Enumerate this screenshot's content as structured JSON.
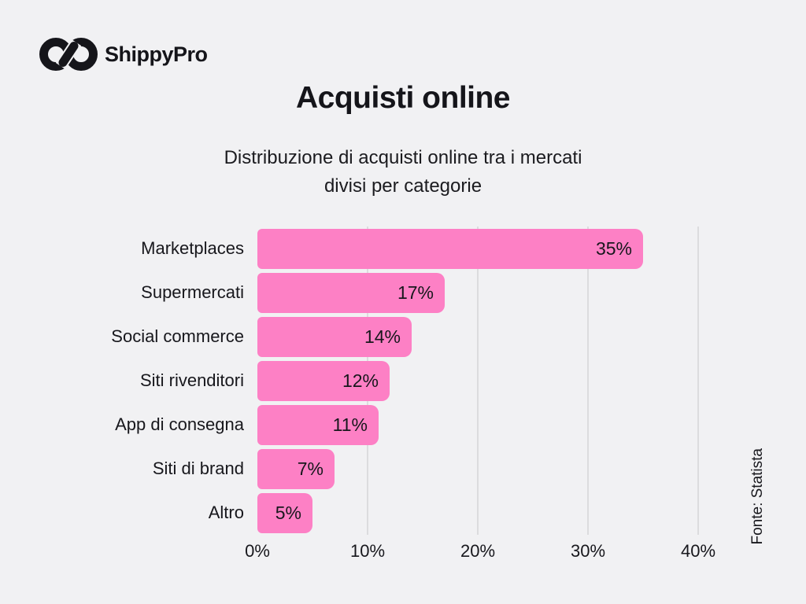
{
  "page": {
    "background_color": "#f1f1f3",
    "text_color": "#17171c"
  },
  "brand": {
    "name": "ShippyPro",
    "logo_icon": "infinity-chain-icon",
    "logo_color": "#15151a"
  },
  "header": {
    "title": "Acquisti online",
    "subtitle_line1": "Distribuzione di acquisti online tra i mercati",
    "subtitle_line2": "divisi per categorie"
  },
  "chart_data": {
    "type": "bar",
    "orientation": "horizontal",
    "title": "Acquisti online",
    "subtitle": "Distribuzione di acquisti online tra i mercati divisi per categorie",
    "categories": [
      "Marketplaces",
      "Supermercati",
      "Social commerce",
      "Siti rivenditori",
      "App di consegna",
      "Siti di brand",
      "Altro"
    ],
    "values": [
      35,
      17,
      14,
      12,
      11,
      7,
      5
    ],
    "value_labels": [
      "35%",
      "17%",
      "14%",
      "12%",
      "11%",
      "7%",
      "5%"
    ],
    "value_label_position": "inside-end",
    "x_ticks": [
      "0%",
      "10%",
      "20%",
      "30%",
      "40%"
    ],
    "x_tick_values": [
      0,
      10,
      20,
      30,
      40
    ],
    "xlim": [
      0,
      40
    ],
    "xlabel": "",
    "ylabel": "",
    "grid": true,
    "gridline_color": "#dcdcde",
    "bar_color": "#fd80c5",
    "source": "Fonte: Statista"
  },
  "footer": {
    "source": "Fonte: Statista"
  }
}
